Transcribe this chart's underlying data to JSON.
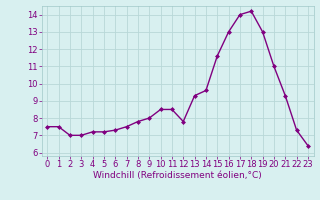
{
  "x": [
    0,
    1,
    2,
    3,
    4,
    5,
    6,
    7,
    8,
    9,
    10,
    11,
    12,
    13,
    14,
    15,
    16,
    17,
    18,
    19,
    20,
    21,
    22,
    23
  ],
  "y": [
    7.5,
    7.5,
    7.0,
    7.0,
    7.2,
    7.2,
    7.3,
    7.5,
    7.8,
    8.0,
    8.5,
    8.5,
    7.8,
    9.3,
    9.6,
    11.6,
    13.0,
    14.0,
    14.2,
    13.0,
    11.0,
    9.3,
    7.3,
    6.4
  ],
  "line_color": "#800080",
  "marker": "D",
  "marker_size": 2.0,
  "line_width": 1.0,
  "xlabel": "Windchill (Refroidissement éolien,°C)",
  "xlabel_fontsize": 6.5,
  "ylim": [
    5.8,
    14.5
  ],
  "xlim": [
    -0.5,
    23.5
  ],
  "yticks": [
    6,
    7,
    8,
    9,
    10,
    11,
    12,
    13,
    14
  ],
  "xticks": [
    0,
    1,
    2,
    3,
    4,
    5,
    6,
    7,
    8,
    9,
    10,
    11,
    12,
    13,
    14,
    15,
    16,
    17,
    18,
    19,
    20,
    21,
    22,
    23
  ],
  "background_color": "#d8f0f0",
  "grid_color": "#b8d8d8",
  "tick_label_fontsize": 6.0,
  "tick_color": "#800080",
  "ylabel_fontsize": 6.5,
  "spine_color": "#a0c8c8"
}
